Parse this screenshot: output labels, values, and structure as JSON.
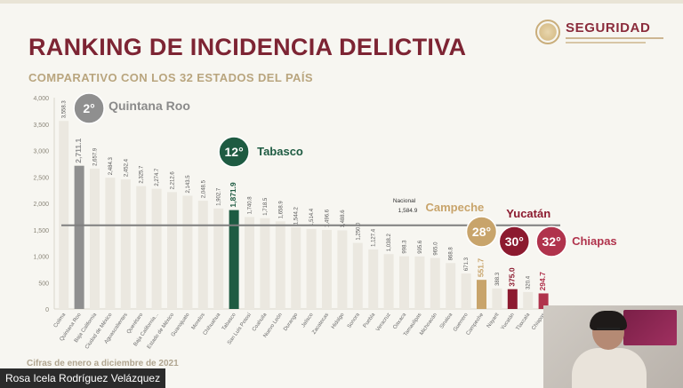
{
  "header": {
    "title": "RANKING DE INCIDENCIA DELICTIVA",
    "subtitle": "COMPARATIVO CON LOS 32 ESTADOS DEL PAÍS",
    "logo_text": "SEGURIDAD"
  },
  "footnote": "Cifras de enero a diciembre de 2021",
  "caption": "Rosa Icela Rodríguez Velázquez",
  "colors": {
    "title": "#7d2433",
    "subtitle": "#b9a57e",
    "bar_default": "#ebe8e0",
    "quintana_roo": "#8f8f8f",
    "tabasco": "#1e5b42",
    "campeche": "#c8a46b",
    "yucatan": "#8c1a2f",
    "chiapas": "#b0334c",
    "national_line": "#7f7f7f"
  },
  "chart_data": {
    "type": "bar",
    "ylim": [
      0,
      4000
    ],
    "yticks": [
      "0",
      "500",
      "1,000",
      "1,500",
      "2,000",
      "2,500",
      "3,000",
      "3,500",
      "4,000"
    ],
    "national": {
      "label": "Nacional",
      "value_label": "1,584.9",
      "value": 1584.9
    },
    "bars": [
      {
        "name": "Colima",
        "value": 3558.3,
        "label": "3,558.3"
      },
      {
        "name": "Quintana Roo",
        "value": 2711.1,
        "label": "2,711.1",
        "highlight": "quintana_roo"
      },
      {
        "name": "Baja California",
        "value": 2657.9,
        "label": "2,657.9"
      },
      {
        "name": "Ciudad de México",
        "value": 2484.3,
        "label": "2,484.3"
      },
      {
        "name": "Aguascalientes",
        "value": 2452.4,
        "label": "2,452.4"
      },
      {
        "name": "Querétaro",
        "value": 2325.7,
        "label": "2,325.7"
      },
      {
        "name": "Baja California...",
        "value": 2274.7,
        "label": "2,274.7"
      },
      {
        "name": "Estado de México",
        "value": 2212.6,
        "label": "2,212.6"
      },
      {
        "name": "Guanajuato",
        "value": 2143.5,
        "label": "2,143.5"
      },
      {
        "name": "Morelos",
        "value": 2048.5,
        "label": "2,048.5"
      },
      {
        "name": "Chihuahua",
        "value": 1902.7,
        "label": "1,902.7"
      },
      {
        "name": "Tabasco",
        "value": 1871.9,
        "label": "1,871.9",
        "highlight": "tabasco"
      },
      {
        "name": "San Luis Potosí",
        "value": 1740.8,
        "label": "1,740.8"
      },
      {
        "name": "Coahuila",
        "value": 1718.5,
        "label": "1,718.5"
      },
      {
        "name": "Nuevo León",
        "value": 1658.9,
        "label": "1,658.9"
      },
      {
        "name": "Durango",
        "value": 1544.2,
        "label": "1,544.2"
      },
      {
        "name": "Jalisco",
        "value": 1514.4,
        "label": "1,514.4"
      },
      {
        "name": "Zacatecas",
        "value": 1496.6,
        "label": "1,496.6"
      },
      {
        "name": "Hidalgo",
        "value": 1488.6,
        "label": "1,488.6"
      },
      {
        "name": "Sonora",
        "value": 1250.0,
        "label": "1,250.0"
      },
      {
        "name": "Puebla",
        "value": 1127.4,
        "label": "1,127.4"
      },
      {
        "name": "Veracruz",
        "value": 1038.2,
        "label": "1,038.2"
      },
      {
        "name": "Oaxaca",
        "value": 998.3,
        "label": "998.3"
      },
      {
        "name": "Tamaulipas",
        "value": 995.6,
        "label": "995.6"
      },
      {
        "name": "Michoacán",
        "value": 965.0,
        "label": "965.0"
      },
      {
        "name": "Sinaloa",
        "value": 868.8,
        "label": "868.8"
      },
      {
        "name": "Guerrero",
        "value": 671.3,
        "label": "671.3"
      },
      {
        "name": "Campeche",
        "value": 551.7,
        "label": "551.7",
        "highlight": "campeche"
      },
      {
        "name": "Nayarit",
        "value": 388.3,
        "label": "388.3"
      },
      {
        "name": "Yucatán",
        "value": 375.0,
        "label": "375.0",
        "highlight": "yucatan"
      },
      {
        "name": "Tlaxcala",
        "value": 320.4,
        "label": "320.4"
      },
      {
        "name": "Chiapas",
        "value": 294.7,
        "label": "294.7",
        "highlight": "chiapas"
      }
    ],
    "callouts": [
      {
        "state": "Quintana Roo",
        "rank": "2°",
        "label": "Quintana Roo",
        "color": "quintana_roo"
      },
      {
        "state": "Tabasco",
        "rank": "12°",
        "label": "Tabasco",
        "color": "tabasco"
      },
      {
        "state": "Campeche",
        "rank": "28°",
        "label": "Campeche",
        "color": "campeche"
      },
      {
        "state": "Yucatán",
        "rank": "30°",
        "label": "Yucatán",
        "color": "yucatan"
      },
      {
        "state": "Chiapas",
        "rank": "32°",
        "label": "Chiapas",
        "color": "chiapas"
      }
    ]
  }
}
